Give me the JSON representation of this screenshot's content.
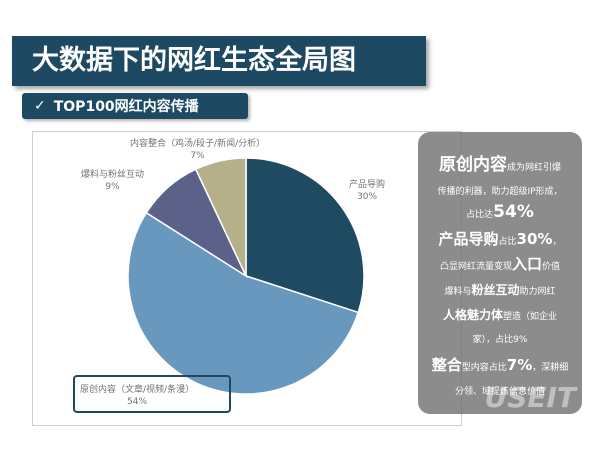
{
  "title": "大数据下的网红生态全局图",
  "subtitle": "TOP100网红内容传播",
  "icons": {
    "check": "check-icon"
  },
  "colors": {
    "title_bg": "#1d4a62",
    "panel_bg": "#6c6c6c",
    "slice_original": "#6898bd",
    "slice_product": "#1e4a62",
    "slice_fans": "#5b6189",
    "slice_integration": "#b5b08a"
  },
  "chart_data": {
    "type": "pie",
    "title": "",
    "slices": [
      {
        "label": "产品导购",
        "value": 30,
        "value_label": "30%",
        "color": "#1e4a62"
      },
      {
        "label": "原创内容（文章/视频/条漫）",
        "value": 54,
        "value_label": "54%",
        "color": "#6898bd"
      },
      {
        "label": "爆料与粉丝互动",
        "value": 9,
        "value_label": "9%",
        "color": "#5b6189"
      },
      {
        "label": "内容整合（鸡汤/段子/新闻/分析）",
        "value": 7,
        "value_label": "7%",
        "color": "#b5b08a"
      }
    ]
  },
  "panel": {
    "l1_a": "原创内容",
    "l1_b": "成为网红引爆",
    "l2": "传播的利器，助力超级IP形成，",
    "l3_a": "占比达",
    "l3_b": "54%",
    "l4_a": "产品导购",
    "l4_b": "占比",
    "l4_c": "30%",
    "l4_d": "，",
    "l5_a": "凸显网红流量变现",
    "l5_b": "入口",
    "l5_c": "价值",
    "l6_a": "爆料与",
    "l6_b": "粉丝互动",
    "l6_c": "助力网红",
    "l7_a": "人格魅力体",
    "l7_b": "塑造（如企业",
    "l8": "家），占比9%",
    "l9_a": "整合",
    "l9_b": "型内容占比",
    "l9_c": "7%",
    "l9_d": "，深耕细",
    "l10": "分领、域提炼信息价值",
    "watermark": "USEIT"
  }
}
